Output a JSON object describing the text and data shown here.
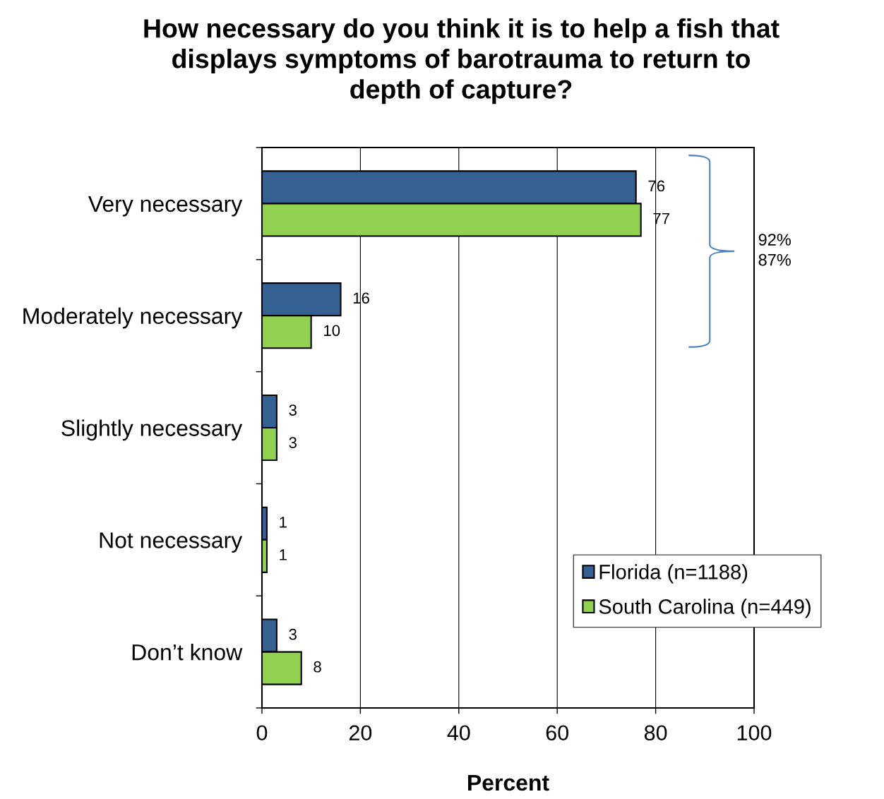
{
  "chart_data": {
    "type": "bar",
    "orientation": "horizontal",
    "title": "How necessary do you think it is to help a fish that\ndisplays symptoms of barotrauma to return to\ndepth of capture?",
    "xlabel": "Percent",
    "categories": [
      "Very necessary",
      "Moderately necessary",
      "Slightly necessary",
      "Not necessary",
      "Don’t know"
    ],
    "series": [
      {
        "name": "Florida (n=1188)",
        "color": "#356092",
        "values": [
          76,
          16,
          3,
          1,
          3
        ]
      },
      {
        "name": "South Carolina (n=449)",
        "color": "#92d050",
        "values": [
          77,
          10,
          3,
          1,
          8
        ]
      }
    ],
    "xlim": [
      0,
      100
    ],
    "xticks": [
      0,
      20,
      40,
      60,
      80,
      100
    ],
    "grid": "x",
    "legend": "bottom right",
    "data_labels": true,
    "annotations": [
      "92%",
      "87%"
    ]
  }
}
